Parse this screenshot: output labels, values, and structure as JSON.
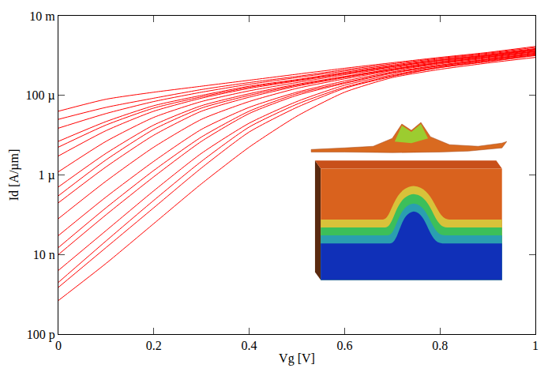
{
  "chart_data": {
    "type": "line",
    "x_label": "Vg [V]",
    "y_label": "Id [A/µm]",
    "log": "y",
    "color": "#ff0000",
    "xlim": [
      0,
      1
    ],
    "xticks": [
      0,
      0.2,
      0.4,
      0.6,
      0.8,
      1
    ],
    "ylim": [
      1e-10,
      0.01
    ],
    "yticks": [
      {
        "value": 1e-10,
        "label": "100 p"
      },
      {
        "value": 1e-08,
        "label": "10 n"
      },
      {
        "value": 1e-06,
        "label": "1 µ"
      },
      {
        "value": 0.0001,
        "label": "100 µ"
      },
      {
        "value": 0.01,
        "label": "10 m"
      }
    ],
    "grid": false,
    "x": [
      0,
      0.1,
      0.2,
      0.3,
      0.4,
      0.5,
      0.6,
      0.7,
      0.8,
      0.9,
      1
    ],
    "series": [
      {
        "values": [
          7e-10,
          6e-09,
          6e-08,
          6e-07,
          5e-06,
          3e-05,
          0.00012,
          0.00028,
          0.00045,
          0.00065,
          0.0009
        ]
      },
      {
        "values": [
          1.5e-09,
          1.5e-08,
          1.5e-07,
          1.5e-06,
          1.2e-05,
          5e-05,
          0.00015,
          0.0003,
          0.0005,
          0.0007,
          0.001
        ]
      },
      {
        "values": [
          2e-09,
          2.2e-08,
          2.3e-07,
          2.2e-06,
          1.6e-05,
          6e-05,
          0.00016,
          0.00031,
          0.0005,
          0.00072,
          0.00102
        ]
      },
      {
        "values": [
          4e-09,
          4e-08,
          4e-07,
          3.5e-06,
          2e-05,
          7e-05,
          0.00018,
          0.00033,
          0.00052,
          0.00075,
          0.00105
        ]
      },
      {
        "values": [
          1e-08,
          1e-07,
          9e-07,
          7e-06,
          3.5e-05,
          0.0001,
          0.0002,
          0.00036,
          0.00055,
          0.00078,
          0.0011
        ]
      },
      {
        "values": [
          1.5e-08,
          1.5e-07,
          1.3e-06,
          9e-06,
          4e-05,
          0.00011,
          0.00021,
          0.00037,
          0.00056,
          0.0008,
          0.00112
        ]
      },
      {
        "values": [
          3e-08,
          2.8e-07,
          2.2e-06,
          1.4e-05,
          5e-05,
          0.00012,
          0.00023,
          0.00039,
          0.00058,
          0.00082,
          0.00115
        ]
      },
      {
        "values": [
          8e-08,
          7e-07,
          5e-06,
          2.5e-05,
          7e-05,
          0.00015,
          0.00026,
          0.00042,
          0.00062,
          0.00086,
          0.0012
        ]
      },
      {
        "values": [
          2e-07,
          1.6e-06,
          1e-05,
          4e-05,
          9e-05,
          0.00017,
          0.00028,
          0.00044,
          0.00065,
          0.0009,
          0.00125
        ]
      },
      {
        "values": [
          3e-07,
          2.4e-06,
          1.4e-05,
          4.8e-05,
          0.0001,
          0.00018,
          0.00029,
          0.00045,
          0.00066,
          0.00092,
          0.00127
        ]
      },
      {
        "values": [
          5e-07,
          3.5e-06,
          1.8e-05,
          5.5e-05,
          0.00011,
          0.00019,
          0.0003,
          0.00046,
          0.00068,
          0.00094,
          0.0013
        ]
      },
      {
        "values": [
          1.2e-06,
          7e-06,
          2.8e-05,
          7e-05,
          0.00013,
          0.00021,
          0.00033,
          0.00049,
          0.00071,
          0.00098,
          0.00135
        ]
      },
      {
        "values": [
          3e-06,
          1.3e-05,
          4e-05,
          8.5e-05,
          0.00015,
          0.00023,
          0.00035,
          0.00052,
          0.00075,
          0.001,
          0.0014
        ]
      },
      {
        "values": [
          5e-06,
          1.8e-05,
          4.8e-05,
          9.2e-05,
          0.00016,
          0.00024,
          0.00036,
          0.00053,
          0.00076,
          0.00102,
          0.00142
        ]
      },
      {
        "values": [
          7e-06,
          2.2e-05,
          5.5e-05,
          0.0001,
          0.00017,
          0.00025,
          0.00038,
          0.00055,
          0.00078,
          0.00105,
          0.00145
        ]
      },
      {
        "values": [
          1.5e-05,
          3.5e-05,
          7e-05,
          0.00012,
          0.00019,
          0.00028,
          0.00041,
          0.00058,
          0.00082,
          0.0011,
          0.0015
        ]
      },
      {
        "values": [
          2.5e-05,
          5e-05,
          8.5e-05,
          0.00014,
          0.00021,
          0.0003,
          0.00044,
          0.00062,
          0.00086,
          0.00115,
          0.0016
        ]
      },
      {
        "values": [
          4e-05,
          8e-05,
          0.00012,
          0.00017,
          0.00024,
          0.00034,
          0.00048,
          0.00066,
          0.0009,
          0.0012,
          0.0017
        ]
      }
    ]
  }
}
